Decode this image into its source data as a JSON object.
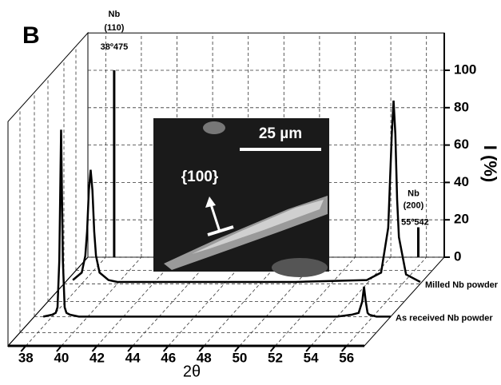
{
  "chart_data": {
    "type": "line",
    "panel_label": "B",
    "x_label": "2θ",
    "y_label": "I (%)",
    "xlim": [
      37,
      57
    ],
    "xticks": [
      38,
      40,
      42,
      44,
      46,
      48,
      50,
      52,
      54,
      56
    ],
    "ylim": [
      0,
      120
    ],
    "yticks": [
      0,
      20,
      40,
      60,
      80,
      100
    ],
    "grid": true,
    "x": [
      37.5,
      38,
      38.2,
      38.3,
      38.4,
      38.5,
      38.6,
      38.7,
      38.8,
      39,
      39.5,
      40,
      45,
      50,
      54,
      54.8,
      55.2,
      55.4,
      55.5,
      55.6,
      55.7,
      55.8,
      56.2,
      57
    ],
    "series": [
      {
        "name": "Milled Nb powder",
        "color": "#000000",
        "values": [
          2,
          6,
          15,
          28,
          50,
          61,
          50,
          28,
          15,
          6,
          2,
          1,
          1,
          1,
          2,
          6,
          30,
          80,
          98,
          80,
          45,
          25,
          5,
          1
        ]
      },
      {
        "name": "As received Nb powder",
        "color": "#000000",
        "values": [
          0,
          1,
          2,
          5,
          30,
          100,
          30,
          5,
          2,
          1,
          0,
          0,
          0,
          0,
          0,
          1,
          2,
          8,
          16,
          8,
          2,
          1,
          0,
          0
        ]
      }
    ],
    "sticks": [
      {
        "element": "Nb",
        "hkl": "(110)",
        "x": 38.475,
        "label": "38º475",
        "value": 100
      },
      {
        "element": "Nb",
        "hkl": "(200)",
        "x": 55.542,
        "label": "55º542",
        "value": 16
      }
    ],
    "inset": {
      "scale_bar": "25 µm",
      "facet": "{100}"
    }
  }
}
